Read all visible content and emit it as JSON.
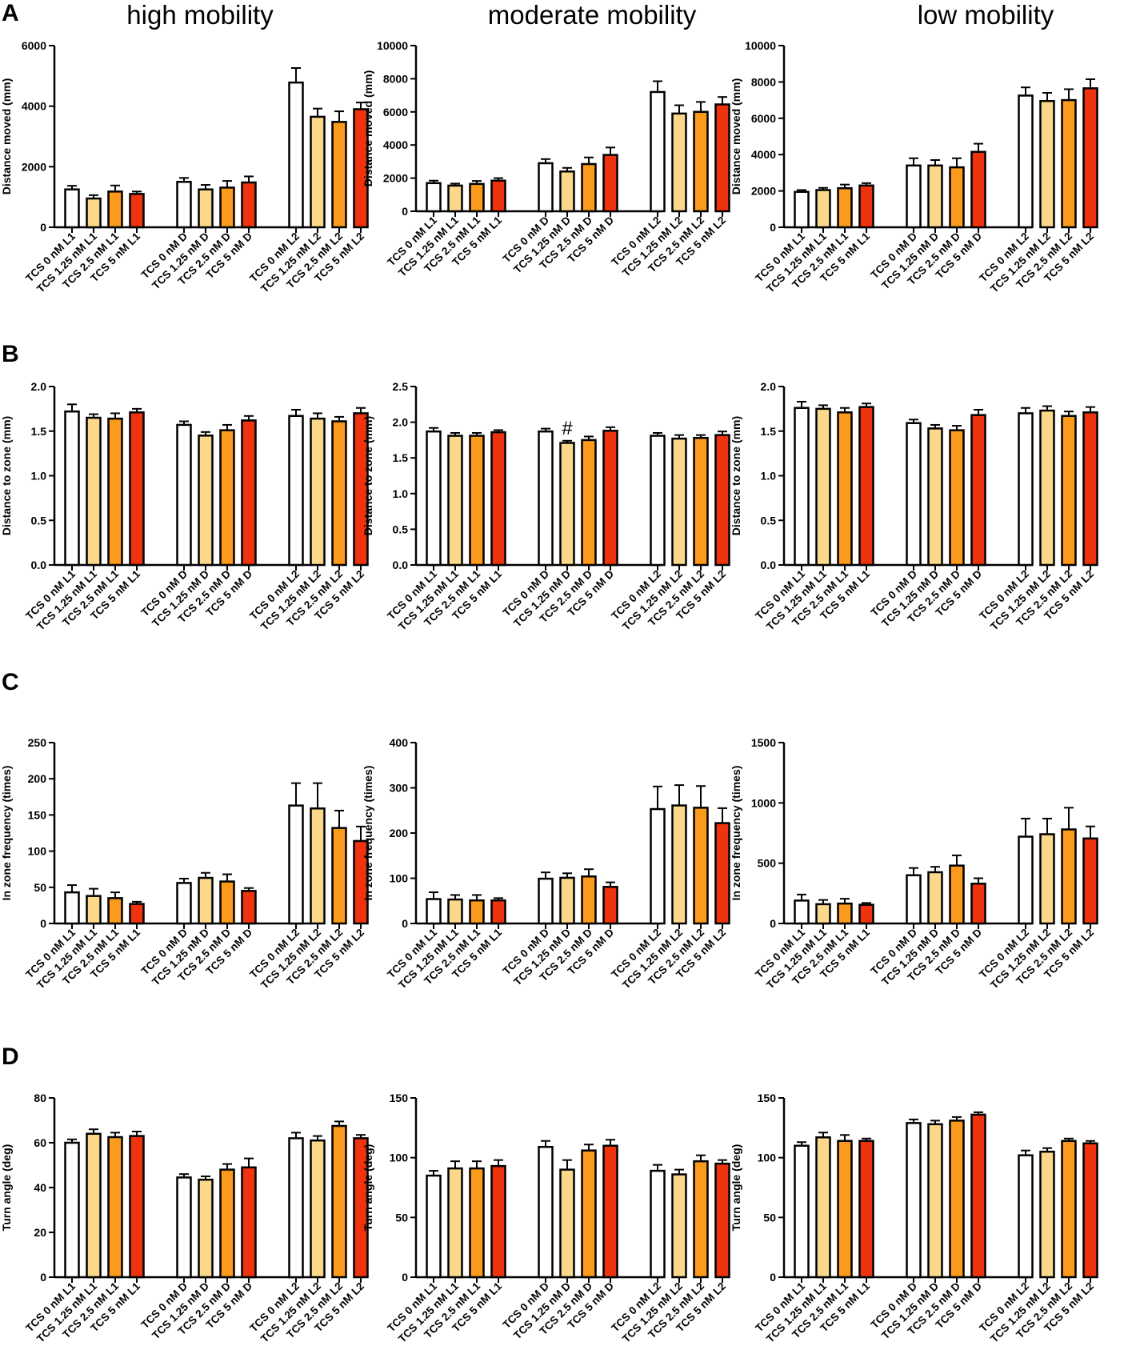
{
  "figure": {
    "column_titles": [
      "high mobility",
      "moderate mobility",
      "low mobility"
    ],
    "row_letters": [
      "A",
      "B",
      "C",
      "D"
    ],
    "colors": {
      "TCS 0 nM": "#ffffff",
      "TCS 1.25 nM": "#fcd98a",
      "TCS 2.5 nM": "#fb9a1b",
      "TCS 5 nM": "#f0330f",
      "stroke": "#000000"
    }
  },
  "chart_data": [
    {
      "id": "A-high",
      "type": "bar",
      "row": "A",
      "col": 0,
      "title": "high mobility",
      "ylabel": "Distance moved  (mm)",
      "ylim": [
        0,
        6000
      ],
      "yticks": [
        0,
        2000,
        4000,
        6000
      ],
      "tick_labels": [
        "0",
        "2000",
        "4000",
        "6000"
      ],
      "categories": [
        "TCS 0 nM L1",
        "TCS 1.25 nM L1",
        "TCS 2.5 nM L1",
        "TCS 5 nM L1",
        "TCS 0 nM D",
        "TCS 1.25 nM D",
        "TCS 2.5 nM D",
        "TCS 5 nM D",
        "TCS 0 nM L2",
        "TCS 1.25 nM L2",
        "TCS 2.5 nM L2",
        "TCS 5 nM L2"
      ],
      "values": [
        1250,
        950,
        1180,
        1100,
        1500,
        1250,
        1310,
        1480,
        4780,
        3650,
        3480,
        3900
      ],
      "errors": [
        120,
        110,
        200,
        80,
        130,
        150,
        220,
        200,
        480,
        270,
        350,
        220
      ]
    },
    {
      "id": "A-moderate",
      "type": "bar",
      "row": "A",
      "col": 1,
      "title": "moderate mobility",
      "ylabel": "Distance moved (mm)",
      "ylim": [
        0,
        10000
      ],
      "yticks": [
        0,
        2000,
        4000,
        6000,
        8000,
        10000
      ],
      "tick_labels": [
        "0",
        "2000",
        "4000",
        "6000",
        "8000",
        "10000"
      ],
      "categories": [
        "TCS 0 nM L1",
        "TCS 1.25 nM L1",
        "TCS 2.5 nM L1",
        "TCS 5 nM L1",
        "TCS 0 nM D",
        "TCS 1.25 nM D",
        "TCS 2.5 nM D",
        "TCS 5 nM D",
        "TCS 0 nM L2",
        "TCS 1.25 nM L2",
        "TCS 2.5 nM L2",
        "TCS 5 nM L2"
      ],
      "values": [
        1700,
        1550,
        1650,
        1850,
        2900,
        2400,
        2850,
        3400,
        7200,
        5900,
        6000,
        6450
      ],
      "errors": [
        150,
        120,
        180,
        150,
        250,
        220,
        400,
        450,
        650,
        500,
        600,
        450
      ]
    },
    {
      "id": "A-low",
      "type": "bar",
      "row": "A",
      "col": 2,
      "title": "low mobility",
      "ylabel": "Distance moved (mm)",
      "ylim": [
        0,
        10000
      ],
      "yticks": [
        0,
        2000,
        4000,
        6000,
        8000,
        10000
      ],
      "tick_labels": [
        "0",
        "2000",
        "4000",
        "6000",
        "8000",
        "10000"
      ],
      "categories": [
        "TCS 0 nM L1",
        "TCS 1.25 nM L1",
        "TCS 2.5 nM L1",
        "TCS 5 nM L1",
        "TCS 0 nM D",
        "TCS 1.25 nM D",
        "TCS 2.5 nM D",
        "TCS 5 nM D",
        "TCS 0 nM L2",
        "TCS 1.25 nM L2",
        "TCS 2.5 nM L2",
        "TCS 5 nM L2"
      ],
      "values": [
        1950,
        2050,
        2150,
        2300,
        3400,
        3400,
        3300,
        4150,
        7250,
        6950,
        7000,
        7650
      ],
      "errors": [
        100,
        120,
        200,
        130,
        400,
        300,
        500,
        450,
        450,
        450,
        600,
        500
      ]
    },
    {
      "id": "B-high",
      "type": "bar",
      "row": "B",
      "col": 0,
      "ylabel": "Distance to zone (mm)",
      "ylim": [
        0,
        2.0
      ],
      "yticks": [
        0,
        0.5,
        1.0,
        1.5,
        2.0
      ],
      "tick_labels": [
        "0.0",
        "0.5",
        "1.0",
        "1.5",
        "2.0"
      ],
      "categories": [
        "TCS 0 nM L1",
        "TCS 1.25 nM L1",
        "TCS 2.5 nM L1",
        "TCS 5 nM L1",
        "TCS 0 nM D",
        "TCS 1.25 nM D",
        "TCS 2.5 nM D",
        "TCS 5 nM D",
        "TCS 0 nM L2",
        "TCS 1.25 nM L2",
        "TCS 2.5 nM L2",
        "TCS 5 nM L2"
      ],
      "values": [
        1.72,
        1.65,
        1.64,
        1.71,
        1.57,
        1.45,
        1.51,
        1.62,
        1.67,
        1.64,
        1.61,
        1.7
      ],
      "errors": [
        0.08,
        0.04,
        0.06,
        0.04,
        0.04,
        0.04,
        0.06,
        0.05,
        0.07,
        0.06,
        0.05,
        0.06
      ]
    },
    {
      "id": "B-moderate",
      "type": "bar",
      "row": "B",
      "col": 1,
      "ylabel": "Distance to zone (mm)",
      "ylim": [
        0,
        2.5
      ],
      "yticks": [
        0,
        0.5,
        1.0,
        1.5,
        2.0,
        2.5
      ],
      "tick_labels": [
        "0.0",
        "0.5",
        "1.0",
        "1.5",
        "2.0",
        "2.5"
      ],
      "categories": [
        "TCS 0 nM L1",
        "TCS 1.25 nM L1",
        "TCS 2.5 nM L1",
        "TCS 5 nM L1",
        "TCS 0 nM D",
        "TCS 1.25 nM D",
        "TCS 2.5 nM D",
        "TCS 5 nM D",
        "TCS 0 nM L2",
        "TCS 1.25 nM L2",
        "TCS 2.5 nM L2",
        "TCS 5 nM L2"
      ],
      "values": [
        1.87,
        1.81,
        1.81,
        1.86,
        1.87,
        1.71,
        1.75,
        1.88,
        1.81,
        1.77,
        1.78,
        1.82
      ],
      "errors": [
        0.05,
        0.04,
        0.04,
        0.03,
        0.04,
        0.03,
        0.05,
        0.05,
        0.04,
        0.05,
        0.04,
        0.05
      ],
      "annotations": [
        {
          "text": "#",
          "category_index": 5
        }
      ]
    },
    {
      "id": "B-low",
      "type": "bar",
      "row": "B",
      "col": 2,
      "ylabel": "Distance to zone (mm)",
      "ylim": [
        0,
        2.0
      ],
      "yticks": [
        0,
        0.5,
        1.0,
        1.5,
        2.0
      ],
      "tick_labels": [
        "0.0",
        "0.5",
        "1.0",
        "1.5",
        "2.0"
      ],
      "categories": [
        "TCS 0 nM L1",
        "TCS 1.25 nM L1",
        "TCS 2.5 nM L1",
        "TCS 5 nM L1",
        "TCS 0 nM D",
        "TCS 1.25 nM D",
        "TCS 2.5 nM D",
        "TCS 5 nM D",
        "TCS 0 nM L2",
        "TCS 1.25 nM L2",
        "TCS 2.5 nM L2",
        "TCS 5 nM L2"
      ],
      "values": [
        1.76,
        1.75,
        1.71,
        1.77,
        1.59,
        1.53,
        1.51,
        1.68,
        1.7,
        1.73,
        1.67,
        1.71
      ],
      "errors": [
        0.07,
        0.04,
        0.05,
        0.04,
        0.04,
        0.04,
        0.05,
        0.06,
        0.06,
        0.05,
        0.05,
        0.06
      ]
    },
    {
      "id": "C-high",
      "type": "bar",
      "row": "C",
      "col": 0,
      "ylabel": "In zone frequency (times)",
      "ylim": [
        0,
        250
      ],
      "yticks": [
        0,
        50,
        100,
        150,
        200,
        250
      ],
      "tick_labels": [
        "0",
        "50",
        "100",
        "150",
        "200",
        "250"
      ],
      "categories": [
        "TCS 0 nM L1",
        "TCS 1.25 nM L1",
        "TCS 2.5 nM L1",
        "TCS 5 nM L1",
        "TCS 0 nM D",
        "TCS 1.25 nM D",
        "TCS 2.5 nM D",
        "TCS 5 nM D",
        "TCS 0 nM L2",
        "TCS 1.25 nM L2",
        "TCS 2.5 nM L2",
        "TCS 5 nM L2"
      ],
      "values": [
        43,
        38,
        35,
        27,
        56,
        63,
        58,
        45,
        163,
        159,
        132,
        114
      ],
      "errors": [
        10,
        10,
        8,
        3,
        6,
        7,
        10,
        4,
        31,
        35,
        24,
        20
      ]
    },
    {
      "id": "C-moderate",
      "type": "bar",
      "row": "C",
      "col": 1,
      "ylabel": "In zone frequency (times)",
      "ylim": [
        0,
        400
      ],
      "yticks": [
        0,
        100,
        200,
        300,
        400
      ],
      "tick_labels": [
        "0",
        "100",
        "200",
        "300",
        "400"
      ],
      "categories": [
        "TCS 0 nM L1",
        "TCS 1.25 nM L1",
        "TCS 2.5 nM L1",
        "TCS 5 nM L1",
        "TCS 0 nM D",
        "TCS 1.25 nM D",
        "TCS 2.5 nM D",
        "TCS 5 nM D",
        "TCS 0 nM L2",
        "TCS 1.25 nM L2",
        "TCS 2.5 nM L2",
        "TCS 5 nM L2"
      ],
      "values": [
        54,
        53,
        51,
        51,
        99,
        101,
        104,
        81,
        253,
        261,
        256,
        222
      ],
      "errors": [
        15,
        10,
        12,
        5,
        14,
        10,
        16,
        10,
        50,
        45,
        48,
        33
      ]
    },
    {
      "id": "C-low",
      "type": "bar",
      "row": "C",
      "col": 2,
      "ylabel": "In zone frequency (times)",
      "ylim": [
        0,
        1500
      ],
      "yticks": [
        0,
        500,
        1000,
        1500
      ],
      "tick_labels": [
        "0",
        "500",
        "1000",
        "1500"
      ],
      "categories": [
        "TCS 0 nM L1",
        "TCS 1.25 nM L1",
        "TCS 2.5 nM L1",
        "TCS 5 nM L1",
        "TCS 0 nM D",
        "TCS 1.25 nM D",
        "TCS 2.5 nM D",
        "TCS 5 nM D",
        "TCS 0 nM L2",
        "TCS 1.25 nM L2",
        "TCS 2.5 nM L2",
        "TCS 5 nM L2"
      ],
      "values": [
        190,
        160,
        165,
        155,
        400,
        425,
        480,
        330,
        720,
        740,
        780,
        705
      ],
      "errors": [
        50,
        35,
        40,
        15,
        60,
        45,
        85,
        45,
        150,
        130,
        180,
        100
      ]
    },
    {
      "id": "D-high",
      "type": "bar",
      "row": "D",
      "col": 0,
      "ylabel": "Turn angle (deg)",
      "ylim": [
        0,
        80
      ],
      "yticks": [
        0,
        20,
        40,
        60,
        80
      ],
      "tick_labels": [
        "0",
        "20",
        "40",
        "60",
        "80"
      ],
      "categories": [
        "TCS 0 nM L1",
        "TCS 1.25 nM L1",
        "TCS 2.5 nM L1",
        "TCS 5 nM L1",
        "TCS 0 nM D",
        "TCS 1.25 nM D",
        "TCS 2.5 nM D",
        "TCS 5 nM D",
        "TCS 0 nM L2",
        "TCS 1.25 nM L2",
        "TCS 2.5 nM L2",
        "TCS 5 nM L2"
      ],
      "values": [
        60,
        64,
        62.5,
        63,
        44.5,
        43.5,
        48,
        49,
        62,
        61,
        67.5,
        62
      ],
      "errors": [
        1.5,
        2,
        2,
        2,
        1.5,
        1.5,
        2.5,
        4,
        2.5,
        2,
        2,
        1.5
      ]
    },
    {
      "id": "D-moderate",
      "type": "bar",
      "row": "D",
      "col": 1,
      "ylabel": "Turn angle (deg)",
      "ylim": [
        0,
        150
      ],
      "yticks": [
        0,
        50,
        100,
        150
      ],
      "tick_labels": [
        "0",
        "50",
        "100",
        "150"
      ],
      "categories": [
        "TCS 0 nM L1",
        "TCS 1.25 nM L1",
        "TCS 2.5 nM L1",
        "TCS 5 nM L1",
        "TCS 0 nM D",
        "TCS 1.25 nM D",
        "TCS 2.5 nM D",
        "TCS 5 nM D",
        "TCS 0 nM L2",
        "TCS 1.25 nM L2",
        "TCS 2.5 nM L2",
        "TCS 5 nM L2"
      ],
      "values": [
        85,
        91,
        91,
        93,
        109,
        90,
        106,
        110,
        89,
        86,
        97,
        95
      ],
      "errors": [
        4,
        6,
        6,
        5,
        5,
        8,
        5,
        5,
        5,
        4,
        5,
        3
      ]
    },
    {
      "id": "D-low",
      "type": "bar",
      "row": "D",
      "col": 2,
      "ylabel": "Turn angle (deg)",
      "ylim": [
        0,
        150
      ],
      "yticks": [
        0,
        50,
        100,
        150
      ],
      "tick_labels": [
        "0",
        "50",
        "100",
        "150"
      ],
      "categories": [
        "TCS 0 nM L1",
        "TCS 1.25 nM L1",
        "TCS 2.5 nM L1",
        "TCS 5 nM L1",
        "TCS 0 nM D",
        "TCS 1.25 nM D",
        "TCS 2.5 nM D",
        "TCS 5 nM D",
        "TCS 0 nM L2",
        "TCS 1.25 nM L2",
        "TCS 2.5 nM L2",
        "TCS 5 nM L2"
      ],
      "values": [
        110,
        117,
        114,
        114,
        129,
        128,
        131,
        136,
        102,
        105,
        114,
        112
      ],
      "errors": [
        3,
        4,
        5,
        2,
        3,
        3,
        3,
        2,
        4,
        3,
        2,
        2
      ]
    }
  ]
}
